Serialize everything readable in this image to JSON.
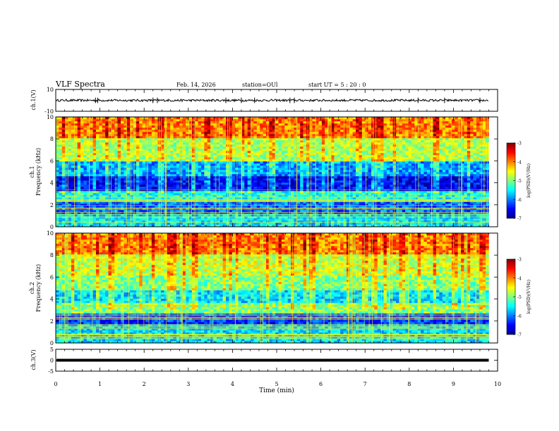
{
  "header": {
    "title": "VLF Spectra",
    "date": "Feb. 14, 2026",
    "station": "station=OUl",
    "start": "start  UT =  5 : 20 : 0"
  },
  "chart_data": [
    {
      "type": "line",
      "panel": "ch1-waveform",
      "ylabel": "ch.1(V)",
      "ylim": [
        -10,
        10
      ],
      "y_ticks": [
        10,
        -10
      ],
      "y_tick_labels": [
        "10",
        "-10"
      ],
      "description_values": {
        "baseline": 0,
        "noise_band": [
          -1,
          1
        ],
        "spike_min": -2.5,
        "spike_max": 2.5
      },
      "spike_times_min": [
        0.9,
        0.95,
        2.2,
        2.3,
        3.85,
        4.2,
        4.5,
        5.3,
        5.4,
        8.2,
        8.8,
        9.6
      ]
    },
    {
      "type": "heatmap",
      "panel": "ch1-spectrogram",
      "ylabel": "ch.1\nFrequency  (kHz)",
      "ylim": [
        0,
        10
      ],
      "y_ticks": [
        0,
        2,
        4,
        6,
        8,
        10
      ],
      "y_tick_labels": [
        "0",
        "2",
        "4",
        "6",
        "8",
        "10"
      ],
      "xlim": [
        0,
        9.8
      ],
      "colorbar": {
        "label": "log(PSD)(V²/Hz)",
        "range": [
          -7,
          -3
        ],
        "ticks": [
          -3,
          -4,
          -5,
          -6,
          -7
        ],
        "tick_labels": [
          "-3",
          "-4",
          "-5",
          "-6",
          "-7"
        ]
      },
      "bands_khz": [
        {
          "from": 0,
          "to": 1.2,
          "level": -5.6
        },
        {
          "from": 1.2,
          "to": 2.3,
          "level": -6.1
        },
        {
          "from": 2.3,
          "to": 3.3,
          "level": -5.4
        },
        {
          "from": 3.3,
          "to": 4.6,
          "level": -6.5
        },
        {
          "from": 4.6,
          "to": 6.0,
          "level": -5.9
        },
        {
          "from": 6.0,
          "to": 8.0,
          "level": -4.8
        },
        {
          "from": 8.0,
          "to": 10.0,
          "level": -4.0
        }
      ]
    },
    {
      "type": "heatmap",
      "panel": "ch2-spectrogram",
      "ylabel": "ch.2\nFrequency  (kHz)",
      "ylim": [
        0,
        10
      ],
      "y_ticks": [
        0,
        2,
        4,
        6,
        8,
        10
      ],
      "y_tick_labels": [
        "0",
        "2",
        "4",
        "6",
        "8",
        "10"
      ],
      "xlim": [
        0,
        9.8
      ],
      "colorbar": {
        "label": "log(PSD)(V²/Hz)",
        "range": [
          -7,
          -3
        ],
        "ticks": [
          -3,
          -4,
          -5,
          -6,
          -7
        ],
        "tick_labels": [
          "-3",
          "-4",
          "-5",
          "-6",
          "-7"
        ]
      },
      "bands_khz": [
        {
          "from": 0,
          "to": 1.8,
          "level": -5.6
        },
        {
          "from": 1.8,
          "to": 2.6,
          "level": -6.3
        },
        {
          "from": 2.6,
          "to": 3.6,
          "level": -5.0
        },
        {
          "from": 3.6,
          "to": 4.8,
          "level": -5.6
        },
        {
          "from": 4.8,
          "to": 6.2,
          "level": -5.0
        },
        {
          "from": 6.2,
          "to": 8.0,
          "level": -4.7
        },
        {
          "from": 8.0,
          "to": 10.0,
          "level": -4.0
        }
      ]
    },
    {
      "type": "line",
      "panel": "ch3-waveform",
      "ylabel": "ch.3(V)",
      "ylim": [
        -5,
        5
      ],
      "y_ticks": [
        5,
        0,
        -5
      ],
      "y_tick_labels": [
        "5",
        "0",
        "-5"
      ],
      "values_const": 0
    }
  ],
  "x_axis": {
    "xlabel": "Time  (min)",
    "xlim": [
      0,
      10
    ],
    "ticks": [
      0,
      1,
      2,
      3,
      4,
      5,
      6,
      7,
      8,
      9,
      10
    ],
    "tick_labels": [
      "0",
      "1",
      "2",
      "3",
      "4",
      "5",
      "6",
      "7",
      "8",
      "9",
      "10"
    ]
  },
  "colors": {
    "jet": [
      "#00008f",
      "#0000ff",
      "#0080ff",
      "#00ffff",
      "#80ff80",
      "#ffff00",
      "#ff8000",
      "#ff0000",
      "#800000"
    ]
  }
}
